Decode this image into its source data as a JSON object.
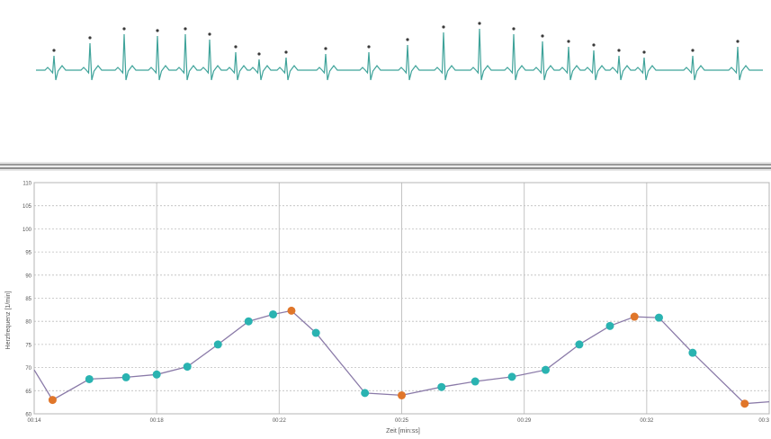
{
  "colors": {
    "ecg_trace": "#3fa39a",
    "ecg_marker": "#3a3a3a",
    "line": "#8a7aa8",
    "normal_point": "#2ab3b1",
    "extreme_point": "#e0762a",
    "grid_major": "#c4c4c4",
    "grid_minor": "#bdbdbd",
    "axis_text": "#555555"
  },
  "chart_data": {
    "type": "line",
    "xlabel": "Zeit [min:ss]",
    "ylabel": "Herzfrequenz [1/min]",
    "x_tick_labels": [
      "00:14",
      "00:18",
      "00:22",
      "00:25",
      "00:29",
      "00:32",
      "00:3"
    ],
    "y_tick_labels": [
      "60",
      "65",
      "70",
      "75",
      "80",
      "85",
      "90",
      "95",
      "100",
      "105",
      "110"
    ],
    "ylim": [
      60,
      110
    ],
    "xlim": [
      14.0,
      38.0
    ],
    "grid": true,
    "legend": "none",
    "series": [
      {
        "points": [
          {
            "x": 14.0,
            "y": 69.5,
            "kind": "none"
          },
          {
            "x": 14.6,
            "y": 63.0,
            "kind": "extreme"
          },
          {
            "x": 15.8,
            "y": 67.5,
            "kind": "normal"
          },
          {
            "x": 17.0,
            "y": 67.9,
            "kind": "normal"
          },
          {
            "x": 18.0,
            "y": 68.5,
            "kind": "normal"
          },
          {
            "x": 19.0,
            "y": 70.2,
            "kind": "normal"
          },
          {
            "x": 20.0,
            "y": 75.0,
            "kind": "normal"
          },
          {
            "x": 21.0,
            "y": 80.0,
            "kind": "normal"
          },
          {
            "x": 21.8,
            "y": 81.5,
            "kind": "normal"
          },
          {
            "x": 22.4,
            "y": 82.3,
            "kind": "extreme"
          },
          {
            "x": 23.2,
            "y": 77.5,
            "kind": "normal"
          },
          {
            "x": 24.8,
            "y": 64.5,
            "kind": "normal"
          },
          {
            "x": 26.0,
            "y": 64.0,
            "kind": "extreme"
          },
          {
            "x": 27.3,
            "y": 65.8,
            "kind": "normal"
          },
          {
            "x": 28.4,
            "y": 67.0,
            "kind": "normal"
          },
          {
            "x": 29.6,
            "y": 68.0,
            "kind": "normal"
          },
          {
            "x": 30.7,
            "y": 69.5,
            "kind": "normal"
          },
          {
            "x": 31.8,
            "y": 75.0,
            "kind": "normal"
          },
          {
            "x": 32.8,
            "y": 79.0,
            "kind": "normal"
          },
          {
            "x": 33.6,
            "y": 81.0,
            "kind": "extreme"
          },
          {
            "x": 34.4,
            "y": 80.8,
            "kind": "normal"
          },
          {
            "x": 35.5,
            "y": 73.2,
            "kind": "normal"
          },
          {
            "x": 37.2,
            "y": 62.2,
            "kind": "extreme"
          },
          {
            "x": 38.0,
            "y": 62.6,
            "kind": "none"
          }
        ]
      }
    ]
  }
}
